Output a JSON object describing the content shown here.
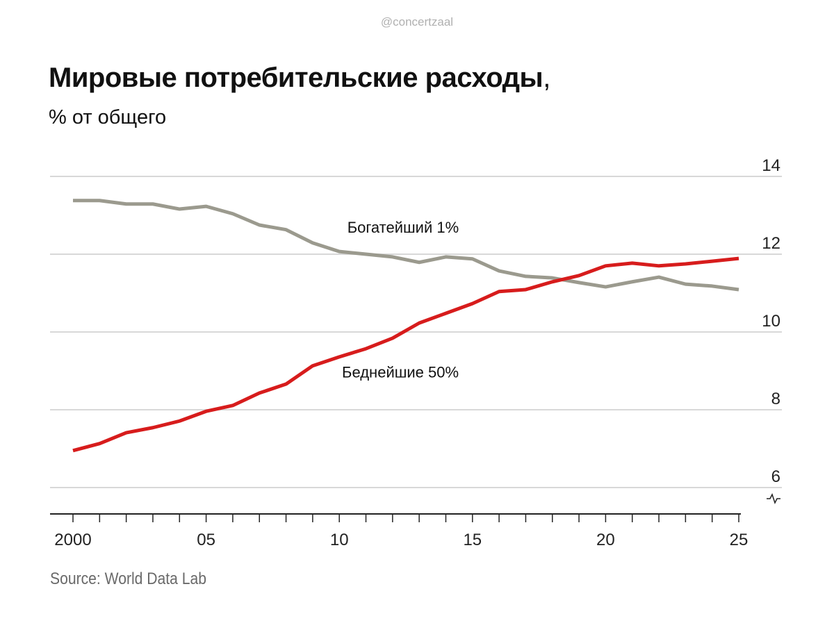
{
  "watermark": "@concertzaal",
  "title": "Мировые потребительские расходы",
  "title_comma": ",",
  "subtitle": "% от общего",
  "source": "Source: World Data Lab",
  "colors": {
    "richest": "#9b9a8e",
    "poorest": "#d71c1c",
    "grid": "#d8d8d8",
    "axis": "#222222"
  },
  "chart_data": {
    "type": "line",
    "title": "Мировые потребительские расходы, % от общего",
    "xlabel": "",
    "ylabel": "% от общего",
    "x": [
      2000,
      2001,
      2002,
      2003,
      2004,
      2005,
      2006,
      2007,
      2008,
      2009,
      2010,
      2011,
      2012,
      2013,
      2014,
      2015,
      2016,
      2017,
      2018,
      2019,
      2020,
      2021,
      2022,
      2023,
      2024,
      2025
    ],
    "xlim": [
      2000,
      2025
    ],
    "ylim": [
      5.3,
      14
    ],
    "y_ticks": [
      6,
      8,
      10,
      12,
      14
    ],
    "y_tick_labels": [
      "6",
      "8",
      "10",
      "12",
      "14"
    ],
    "x_ticks": [
      2000,
      2005,
      2010,
      2015,
      2020,
      2025
    ],
    "x_tick_labels": [
      "2000",
      "05",
      "10",
      "15",
      "20",
      "25"
    ],
    "y_axis_side": "right",
    "y_axis_break": true,
    "grid": true,
    "series": [
      {
        "name": "Богатейший 1%",
        "color": "#9b9a8e",
        "values": [
          13.38,
          13.38,
          13.29,
          13.29,
          13.16,
          13.23,
          13.04,
          12.75,
          12.63,
          12.29,
          12.07,
          12.0,
          11.93,
          11.79,
          11.93,
          11.88,
          11.57,
          11.43,
          11.39,
          11.27,
          11.16,
          11.29,
          11.41,
          11.23,
          11.18,
          11.09
        ],
        "label_pos": [
          2010.3,
          12.55
        ]
      },
      {
        "name": "Беднейшие 50%",
        "color": "#d71c1c",
        "values": [
          6.95,
          7.13,
          7.41,
          7.54,
          7.71,
          7.96,
          8.11,
          8.43,
          8.66,
          9.13,
          9.36,
          9.57,
          9.84,
          10.23,
          10.48,
          10.73,
          11.04,
          11.09,
          11.29,
          11.45,
          11.7,
          11.77,
          11.7,
          11.75,
          11.82,
          11.89
        ],
        "label_pos": [
          2010.1,
          8.83
        ]
      }
    ]
  }
}
